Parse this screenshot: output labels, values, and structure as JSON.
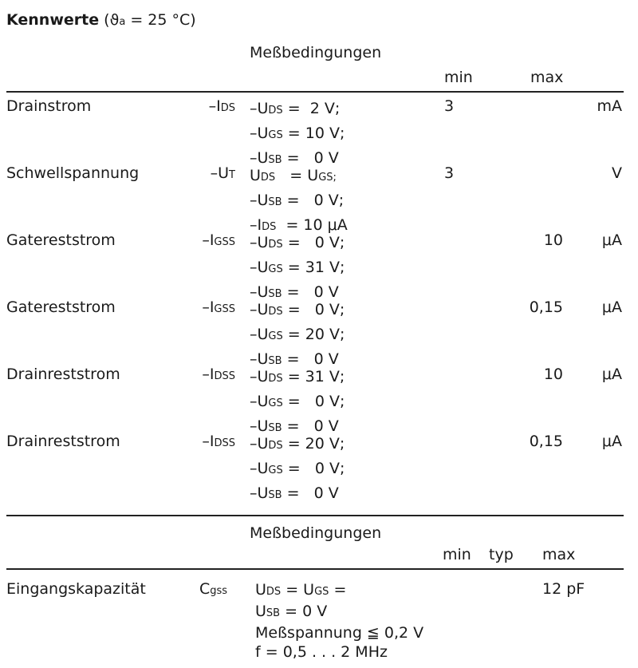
{
  "title": {
    "bold": "Kennwerte",
    "rest": "(ϑ",
    "sub": "a",
    "end": " = 25 °C)"
  },
  "section1": {
    "conditions_header": "Meßbedingungen",
    "col_min": "min",
    "col_max": "max",
    "rows": [
      {
        "name": "Drainstrom",
        "sym": [
          [
            "–I",
            ""
          ],
          [
            "DS",
            "s"
          ]
        ],
        "min": "3",
        "max": "",
        "unit": "mA",
        "cond": [
          [
            [
              "–U",
              ""
            ],
            [
              "DS",
              "s"
            ],
            [
              " =  2 V;",
              ""
            ]
          ],
          [
            [
              "–U",
              ""
            ],
            [
              "GS",
              "s"
            ],
            [
              " = 10 V;",
              ""
            ]
          ],
          [
            [
              "–U",
              ""
            ],
            [
              "SB",
              "s"
            ],
            [
              " =   0 V",
              ""
            ]
          ]
        ]
      },
      {
        "name": "Schwellspannung",
        "sym": [
          [
            "–U",
            ""
          ],
          [
            "T",
            "s"
          ]
        ],
        "min": "3",
        "max": "",
        "unit": "V",
        "cond": [
          [
            [
              "U",
              ""
            ],
            [
              "DS",
              "s"
            ],
            [
              "   = U",
              ""
            ],
            [
              "GS;",
              "s"
            ]
          ],
          [
            [
              "–U",
              ""
            ],
            [
              "SB",
              "s"
            ],
            [
              " =   0 V;",
              ""
            ]
          ],
          [
            [
              "–I",
              ""
            ],
            [
              "DS",
              "s"
            ],
            [
              "  = 10 μA",
              ""
            ]
          ]
        ]
      },
      {
        "name": "Gatereststrom",
        "sym": [
          [
            "–I",
            ""
          ],
          [
            "GSS",
            "s"
          ]
        ],
        "min": "",
        "max": "10",
        "unit": "μA",
        "cond": [
          [
            [
              "–U",
              ""
            ],
            [
              "DS",
              "s"
            ],
            [
              " =   0 V;",
              ""
            ]
          ],
          [
            [
              "–U",
              ""
            ],
            [
              "GS",
              "s"
            ],
            [
              " = 31 V;",
              ""
            ]
          ],
          [
            [
              "–U",
              ""
            ],
            [
              "SB",
              "s"
            ],
            [
              " =   0 V",
              ""
            ]
          ]
        ]
      },
      {
        "name": "Gatereststrom",
        "sym": [
          [
            "–I",
            ""
          ],
          [
            "GSS",
            "s"
          ]
        ],
        "min": "",
        "max": "0,15",
        "unit": "μA",
        "cond": [
          [
            [
              "–U",
              ""
            ],
            [
              "DS",
              "s"
            ],
            [
              " =   0 V;",
              ""
            ]
          ],
          [
            [
              "–U",
              ""
            ],
            [
              "GS",
              "s"
            ],
            [
              " = 20 V;",
              ""
            ]
          ],
          [
            [
              "–U",
              ""
            ],
            [
              "SB",
              "s"
            ],
            [
              " =   0 V",
              ""
            ]
          ]
        ]
      },
      {
        "name": "Drainreststrom",
        "sym": [
          [
            "–I",
            ""
          ],
          [
            "DSS",
            "s"
          ]
        ],
        "min": "",
        "max": "10",
        "unit": "μA",
        "cond": [
          [
            [
              "–U",
              ""
            ],
            [
              "DS",
              "s"
            ],
            [
              " = 31 V;",
              ""
            ]
          ],
          [
            [
              "–U",
              ""
            ],
            [
              "GS",
              "s"
            ],
            [
              " =   0 V;",
              ""
            ]
          ],
          [
            [
              "–U",
              ""
            ],
            [
              "SB",
              "s"
            ],
            [
              " =   0 V",
              ""
            ]
          ]
        ]
      },
      {
        "name": "Drainreststrom",
        "sym": [
          [
            "–I",
            ""
          ],
          [
            "DSS",
            "s"
          ]
        ],
        "min": "",
        "max": "0,15",
        "unit": "μA",
        "cond": [
          [
            [
              "–U",
              ""
            ],
            [
              "DS",
              "s"
            ],
            [
              " = 20 V;",
              ""
            ]
          ],
          [
            [
              "–U",
              ""
            ],
            [
              "GS",
              "s"
            ],
            [
              " =   0 V;",
              ""
            ]
          ],
          [
            [
              "–U",
              ""
            ],
            [
              "SB",
              "s"
            ],
            [
              " =   0 V",
              ""
            ]
          ]
        ]
      }
    ]
  },
  "section2": {
    "conditions_header": "Meßbedingungen",
    "col_min": "min",
    "col_typ": "typ",
    "col_max": "max",
    "row": {
      "name": "Eingangskapazität",
      "sym": [
        [
          "C",
          ""
        ],
        [
          "gss",
          "s"
        ]
      ],
      "max": "12 pF",
      "cond": [
        [
          [
            "U",
            ""
          ],
          [
            "DS",
            "s"
          ],
          [
            " = U",
            ""
          ],
          [
            "GS",
            "s"
          ],
          [
            " =",
            ""
          ]
        ],
        [
          [
            "U",
            ""
          ],
          [
            "SB",
            "s"
          ],
          [
            " = 0 V",
            ""
          ]
        ],
        [
          [
            "Meßspannung ≦ 0,2 V",
            ""
          ]
        ],
        [
          [
            "f = 0,5 . . . 2 MHz",
            ""
          ]
        ]
      ]
    }
  }
}
